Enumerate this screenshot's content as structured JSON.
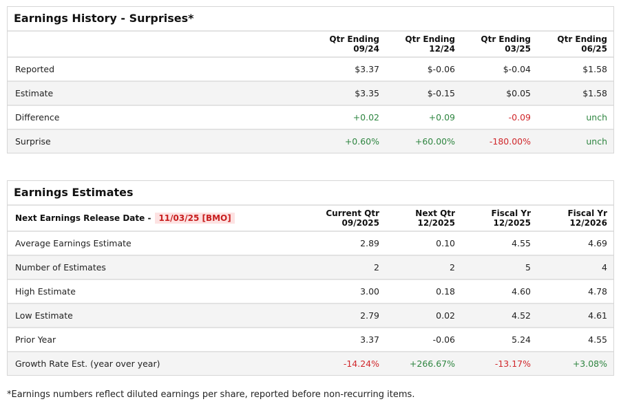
{
  "history": {
    "title": "Earnings History - Surprises*",
    "columns": [
      [
        "Qtr Ending",
        "09/24"
      ],
      [
        "Qtr Ending",
        "12/24"
      ],
      [
        "Qtr Ending",
        "03/25"
      ],
      [
        "Qtr Ending",
        "06/25"
      ]
    ],
    "rows": [
      {
        "label": "Reported",
        "values": [
          "$3.37",
          "$-0.06",
          "$-0.04",
          "$1.58"
        ],
        "tones": [
          "",
          "",
          "",
          ""
        ]
      },
      {
        "label": "Estimate",
        "values": [
          "$3.35",
          "$-0.15",
          "$0.05",
          "$1.58"
        ],
        "tones": [
          "",
          "",
          "",
          ""
        ]
      },
      {
        "label": "Difference",
        "values": [
          "+0.02",
          "+0.09",
          "-0.09",
          "unch"
        ],
        "tones": [
          "pos",
          "pos",
          "neg",
          "pos"
        ]
      },
      {
        "label": "Surprise",
        "values": [
          "+0.60%",
          "+60.00%",
          "-180.00%",
          "unch"
        ],
        "tones": [
          "pos",
          "pos",
          "neg",
          "pos"
        ]
      }
    ]
  },
  "estimates": {
    "title": "Earnings Estimates",
    "release_label": "Next Earnings Release Date -",
    "release_date": "11/03/25 [BMO]",
    "columns": [
      [
        "Current Qtr",
        "09/2025"
      ],
      [
        "Next Qtr",
        "12/2025"
      ],
      [
        "Fiscal Yr",
        "12/2025"
      ],
      [
        "Fiscal Yr",
        "12/2026"
      ]
    ],
    "rows": [
      {
        "label": "Average Earnings Estimate",
        "values": [
          "2.89",
          "0.10",
          "4.55",
          "4.69"
        ],
        "tones": [
          "",
          "",
          "",
          ""
        ]
      },
      {
        "label": "Number of Estimates",
        "values": [
          "2",
          "2",
          "5",
          "4"
        ],
        "tones": [
          "",
          "",
          "",
          ""
        ]
      },
      {
        "label": "High Estimate",
        "values": [
          "3.00",
          "0.18",
          "4.60",
          "4.78"
        ],
        "tones": [
          "",
          "",
          "",
          ""
        ]
      },
      {
        "label": "Low Estimate",
        "values": [
          "2.79",
          "0.02",
          "4.52",
          "4.61"
        ],
        "tones": [
          "",
          "",
          "",
          ""
        ]
      },
      {
        "label": "Prior Year",
        "values": [
          "3.37",
          "-0.06",
          "5.24",
          "4.55"
        ],
        "tones": [
          "",
          "",
          "",
          ""
        ]
      },
      {
        "label": "Growth Rate Est. (year over year)",
        "values": [
          "-14.24%",
          "+266.67%",
          "-13.17%",
          "+3.08%"
        ],
        "tones": [
          "neg",
          "pos",
          "neg",
          "pos"
        ]
      }
    ]
  },
  "footnote": "*Earnings numbers reflect diluted earnings per share, reported before non-recurring items.",
  "colors": {
    "positive": "#2e8540",
    "negative": "#d0262a",
    "badge_bg": "#fde2e2"
  }
}
